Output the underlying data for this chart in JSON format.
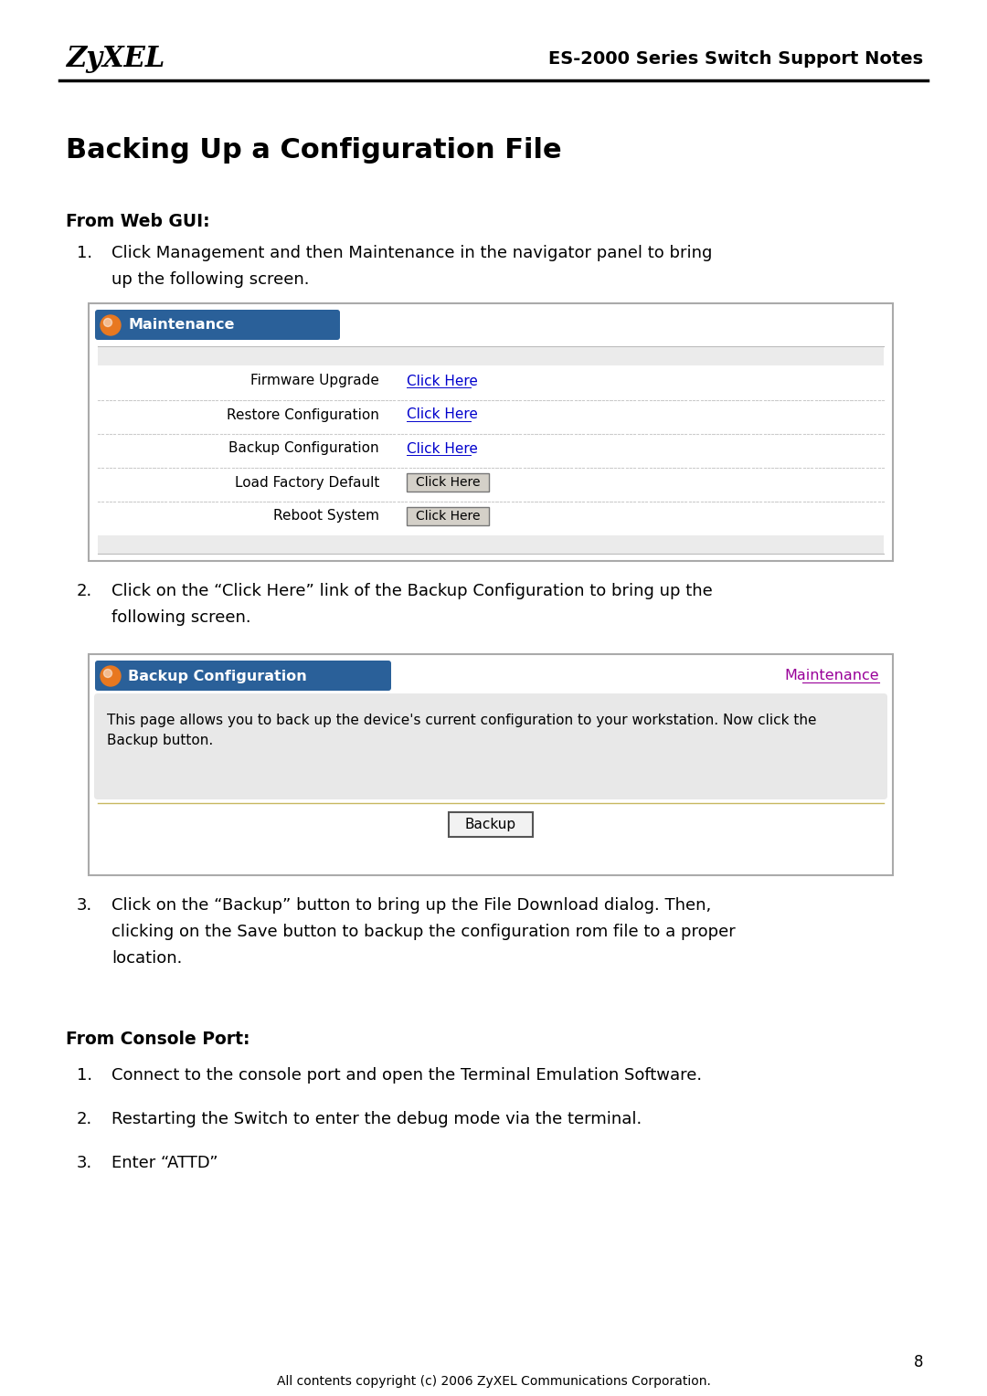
{
  "page_bg": "#ffffff",
  "header_zyxel": "ZyXEL",
  "header_title": "ES-2000 Series Switch Support Notes",
  "main_title": "Backing Up a Configuration File",
  "section1_label": "From Web GUI:",
  "step1_line1": "Click Management and then Maintenance in the navigator panel to bring",
  "step1_line2": "up the following screen.",
  "step2_line1": "Click on the “Click Here” link of the Backup Configuration to bring up the",
  "step2_line2": "following screen.",
  "step3_line1": "Click on the “Backup” button to bring up the File Download dialog. Then,",
  "step3_line2": "clicking on the Save button to backup the configuration rom file to a proper",
  "step3_line3": "location.",
  "section2_label": "From Console Port:",
  "console_step1": "Connect to the console port and open the Terminal Emulation Software.",
  "console_step2": "Restarting the Switch to enter the debug mode via the terminal.",
  "console_step3": "Enter “ATTD”",
  "footer_text": "All contents copyright (c) 2006 ZyXEL Communications Corporation.",
  "page_number": "8",
  "maint_header_color": "#2a6099",
  "maint_header_text": "Maintenance",
  "backup_header_text": "Backup Configuration",
  "maint_link_color": "#0000cc",
  "maint_link2_color": "#990099",
  "orange_ball_color": "#e87820",
  "table_rows": [
    {
      "label": "Firmware Upgrade",
      "action": "Click Here",
      "is_button": false
    },
    {
      "label": "Restore Configuration",
      "action": "Click Here",
      "is_button": false
    },
    {
      "label": "Backup Configuration",
      "action": "Click Here",
      "is_button": false
    },
    {
      "label": "Load Factory Default",
      "action": "Click Here",
      "is_button": true
    },
    {
      "label": "Reboot System",
      "action": "Click Here",
      "is_button": true
    }
  ],
  "backup_desc_line1": "This page allows you to back up the device's current configuration to your workstation. Now click the",
  "backup_desc_line2": "Backup button.",
  "backup_btn_text": "Backup"
}
